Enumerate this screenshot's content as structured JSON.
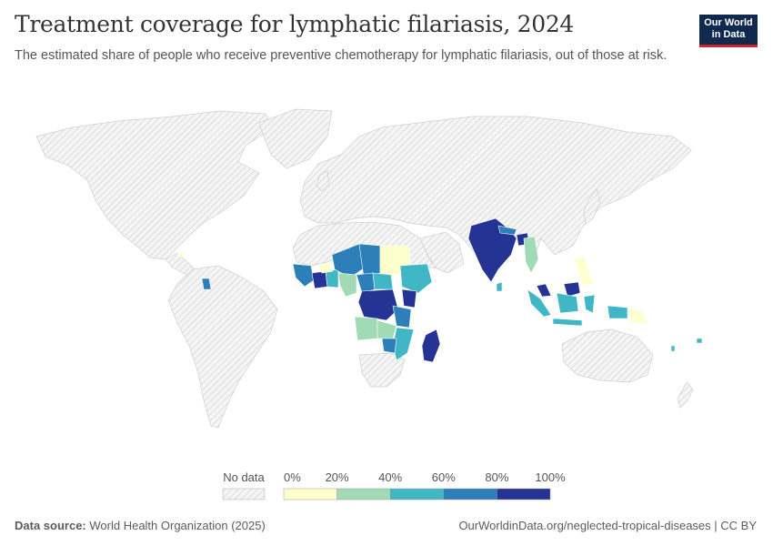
{
  "header": {
    "title": "Treatment coverage for lymphatic filariasis, 2024",
    "subtitle": "The estimated share of people who receive preventive chemotherapy for lymphatic filariasis, out of those at risk."
  },
  "logo": {
    "line1": "Our World",
    "line2": "in Data"
  },
  "legend": {
    "no_data_label": "No data",
    "ticks": [
      "0%",
      "20%",
      "40%",
      "60%",
      "80%",
      "100%"
    ],
    "bins": [
      {
        "range": "0–20%",
        "color": "#ffffcc"
      },
      {
        "range": "20–40%",
        "color": "#a1dab4"
      },
      {
        "range": "40–60%",
        "color": "#41b6c4"
      },
      {
        "range": "60–80%",
        "color": "#2c7fb8"
      },
      {
        "range": "80–100%",
        "color": "#253494"
      }
    ]
  },
  "colors": {
    "no_data_fill": "#f2f2f2",
    "no_data_hatch": "#dddddd",
    "border": "#cfcfcf"
  },
  "footer": {
    "source_label": "Data source:",
    "source_value": "World Health Organization (2025)",
    "url": "OurWorldinData.org/neglected-tropical-diseases | CC BY"
  }
}
